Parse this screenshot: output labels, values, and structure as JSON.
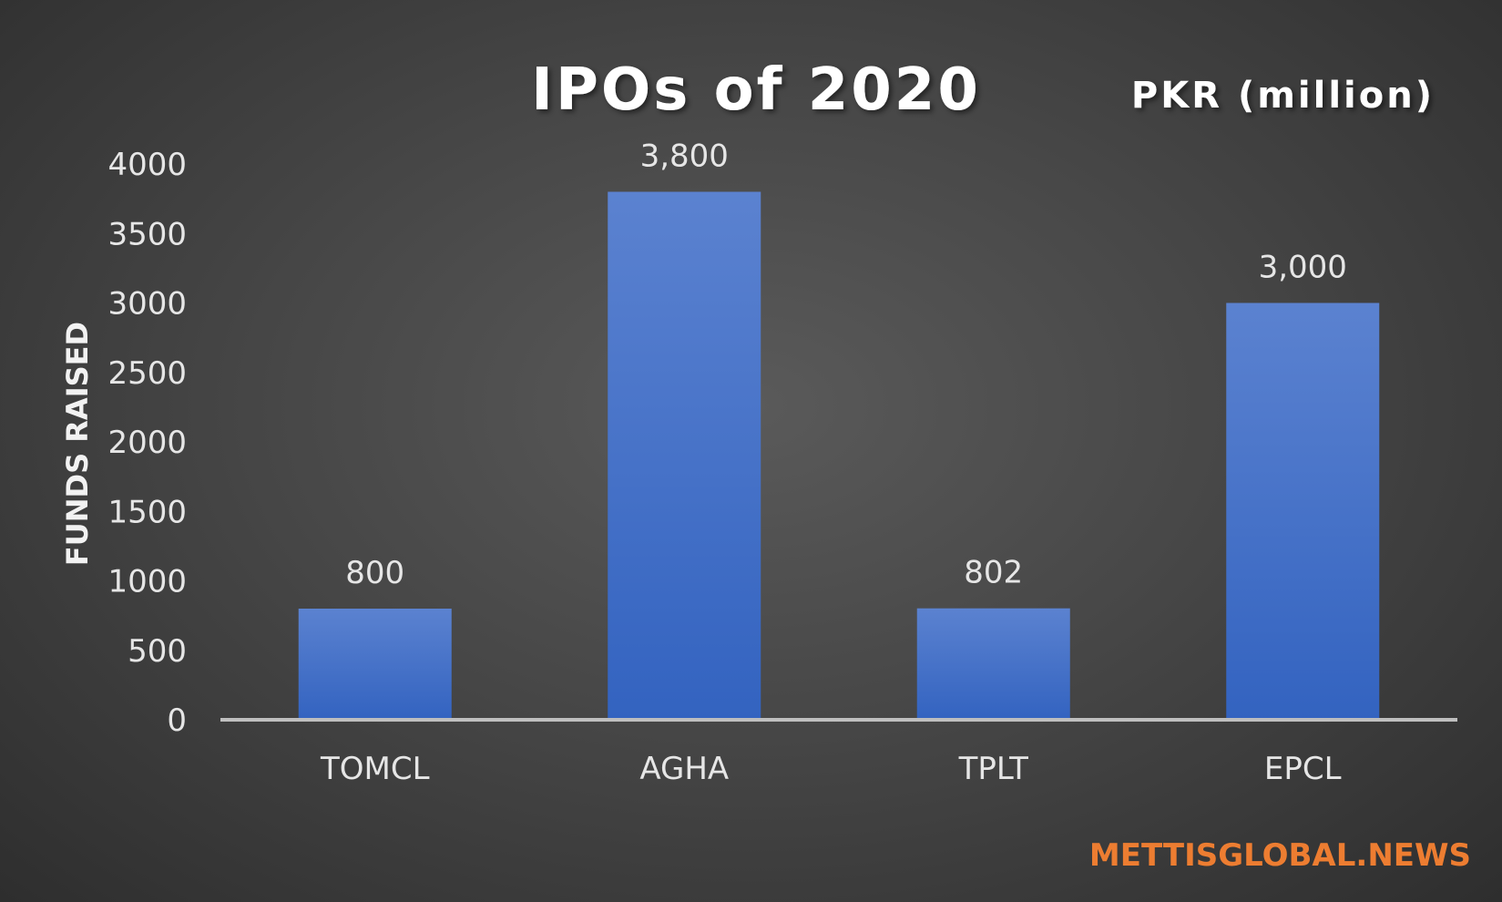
{
  "chart_data": {
    "type": "bar",
    "title": "IPOs of 2020",
    "unit_label": "PKR (million)",
    "ylabel": "FUNDS RAISED",
    "xlabel": "",
    "categories": [
      "TOMCL",
      "AGHA",
      "TPLT",
      "EPCL"
    ],
    "values": [
      800,
      3800,
      802,
      3000
    ],
    "data_labels": [
      "800",
      "3,800",
      "802",
      "3,000"
    ],
    "ylim": [
      0,
      4000
    ],
    "yticks": [
      0,
      500,
      1000,
      1500,
      2000,
      2500,
      3000,
      3500,
      4000
    ],
    "grid": false,
    "legend": "none",
    "bar_color": "#4472c4"
  },
  "source": {
    "text": "METTISGLOBAL.NEWS",
    "color": "#ed7d31"
  }
}
